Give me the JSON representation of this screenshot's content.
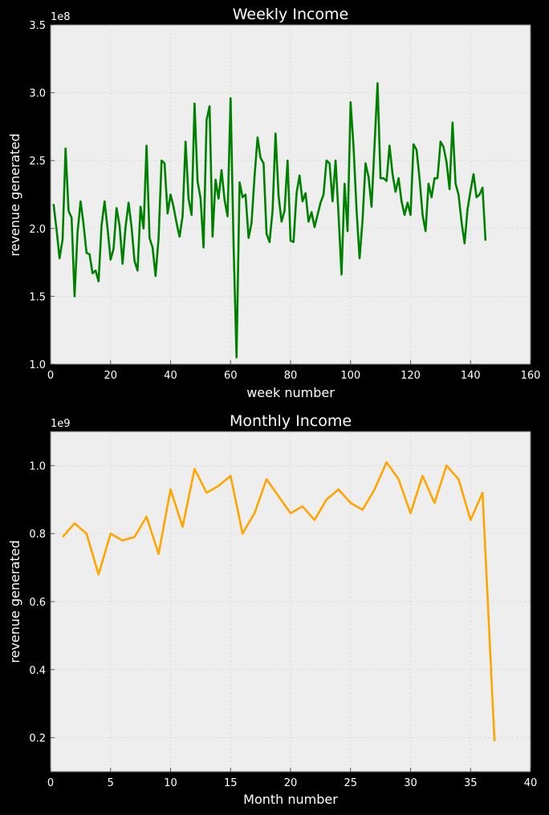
{
  "chart_data": [
    {
      "type": "line",
      "title": "Weekly Income",
      "xlabel": "week number",
      "ylabel": "revenue generated",
      "offset_label": "1e8",
      "xlim": [
        0,
        160
      ],
      "ylim": [
        1.0,
        3.5
      ],
      "xticks": [
        "0",
        "20",
        "40",
        "60",
        "80",
        "100",
        "120",
        "140",
        "160"
      ],
      "yticks": [
        "1.0",
        "1.5",
        "2.0",
        "2.5",
        "3.0",
        "3.5"
      ],
      "grid": true,
      "color": "#008000",
      "background": "#eeeeee",
      "series": [
        {
          "x": [
            1,
            2,
            3,
            4,
            5,
            6,
            7,
            8,
            9,
            10,
            11,
            12,
            13,
            14,
            15,
            16,
            17,
            18,
            19,
            20,
            21,
            22,
            23,
            24,
            25,
            26,
            27,
            28,
            29,
            30,
            31,
            32,
            33,
            34,
            35,
            36,
            37,
            38,
            39,
            40,
            41,
            42,
            43,
            44,
            45,
            46,
            47,
            48,
            49,
            50,
            51,
            52,
            53,
            54,
            55,
            56,
            57,
            58,
            59,
            60,
            61,
            62,
            63,
            64,
            65,
            66,
            67,
            68,
            69,
            70,
            71,
            72,
            73,
            74,
            75,
            76,
            77,
            78,
            79,
            80,
            81,
            82,
            83,
            84,
            85,
            86,
            87,
            88,
            89,
            90,
            91,
            92,
            93,
            94,
            95,
            96,
            97,
            98,
            99,
            100,
            101,
            102,
            103,
            104,
            105,
            106,
            107,
            108,
            109,
            110,
            111,
            112,
            113,
            114,
            115,
            116,
            117,
            118,
            119,
            120,
            121,
            122,
            123,
            124,
            125,
            126,
            127,
            128,
            129,
            130,
            131,
            132,
            133,
            134,
            135,
            136,
            137,
            138,
            139,
            140,
            141,
            142,
            143,
            144,
            145
          ],
          "values": [
            2.18,
            1.99,
            1.78,
            1.92,
            2.59,
            2.13,
            2.08,
            1.5,
            1.97,
            2.2,
            2.03,
            1.82,
            1.81,
            1.67,
            1.69,
            1.61,
            2.02,
            2.2,
            2.0,
            1.77,
            1.85,
            2.15,
            2.02,
            1.74,
            2.01,
            2.19,
            2.01,
            1.76,
            1.69,
            2.16,
            2.0,
            2.61,
            1.93,
            1.86,
            1.65,
            1.93,
            2.5,
            2.48,
            2.11,
            2.25,
            2.16,
            2.04,
            1.94,
            2.09,
            2.64,
            2.22,
            2.1,
            2.92,
            2.35,
            2.22,
            1.86,
            2.8,
            2.9,
            1.94,
            2.36,
            2.22,
            2.43,
            2.21,
            2.09,
            2.96,
            1.88,
            1.05,
            2.34,
            2.23,
            2.25,
            1.93,
            2.04,
            2.38,
            2.67,
            2.52,
            2.48,
            1.96,
            1.9,
            2.13,
            2.7,
            2.24,
            2.05,
            2.13,
            2.5,
            1.91,
            1.9,
            2.26,
            2.39,
            2.2,
            2.26,
            2.05,
            2.12,
            2.01,
            2.1,
            2.19,
            2.25,
            2.5,
            2.48,
            2.2,
            2.5,
            2.1,
            1.66,
            2.33,
            1.98,
            2.93,
            2.6,
            2.14,
            1.78,
            2.06,
            2.48,
            2.38,
            2.16,
            2.62,
            3.07,
            2.37,
            2.37,
            2.35,
            2.61,
            2.4,
            2.27,
            2.37,
            2.2,
            2.1,
            2.19,
            2.1,
            2.62,
            2.58,
            2.37,
            2.1,
            1.98,
            2.33,
            2.23,
            2.37,
            2.37,
            2.64,
            2.6,
            2.49,
            2.29,
            2.78,
            2.33,
            2.25,
            2.05,
            1.89,
            2.14,
            2.28,
            2.4,
            2.23,
            2.25,
            2.3,
            1.91
          ]
        }
      ]
    },
    {
      "type": "line",
      "title": "Monthly Income",
      "xlabel": "Month number",
      "ylabel": "revenue generated",
      "offset_label": "1e9",
      "xlim": [
        0,
        40
      ],
      "ylim": [
        0.1,
        1.1
      ],
      "xticks": [
        "0",
        "5",
        "10",
        "15",
        "20",
        "25",
        "30",
        "35",
        "40"
      ],
      "yticks": [
        "0.2",
        "0.4",
        "0.6",
        "0.8",
        "1.0"
      ],
      "grid": true,
      "color": "#ffa500",
      "background": "#eeeeee",
      "series": [
        {
          "x": [
            1,
            2,
            3,
            4,
            5,
            6,
            7,
            8,
            9,
            10,
            11,
            12,
            13,
            14,
            15,
            16,
            17,
            18,
            19,
            20,
            21,
            22,
            23,
            24,
            25,
            26,
            27,
            28,
            29,
            30,
            31,
            32,
            33,
            34,
            35,
            36,
            37
          ],
          "values": [
            0.79,
            0.83,
            0.8,
            0.68,
            0.8,
            0.78,
            0.79,
            0.85,
            0.74,
            0.93,
            0.82,
            0.99,
            0.92,
            0.94,
            0.97,
            0.8,
            0.86,
            0.96,
            0.91,
            0.86,
            0.88,
            0.84,
            0.9,
            0.93,
            0.89,
            0.87,
            0.93,
            1.01,
            0.96,
            0.86,
            0.97,
            0.89,
            1.0,
            0.96,
            0.84,
            0.92,
            0.19
          ]
        }
      ]
    }
  ]
}
